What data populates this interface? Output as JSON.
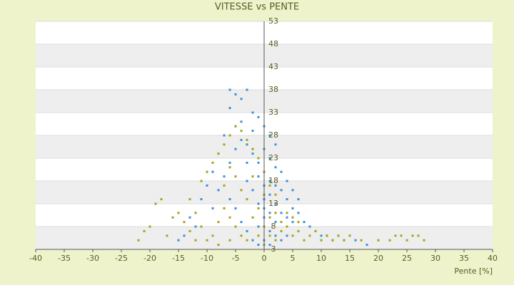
{
  "chart_data": {
    "type": "scatter",
    "title": "VITESSE vs PENTE",
    "x_label": "Pente [%]",
    "xlim": [
      -40,
      40
    ],
    "xticks": [
      -40,
      -35,
      -30,
      -25,
      -20,
      -15,
      -10,
      -5,
      0,
      5,
      10,
      15,
      20,
      25,
      30,
      35,
      40
    ],
    "ylim": [
      3,
      53
    ],
    "yticks": [
      3,
      8,
      13,
      18,
      23,
      28,
      33,
      38,
      43,
      48,
      53
    ],
    "banded_grid": true,
    "series": [
      {
        "color": "#3b8fd8",
        "x": [
          -6,
          -5,
          -4,
          -3,
          -2,
          -1,
          0,
          -4,
          -6,
          -5,
          -7,
          -8,
          -9,
          -10,
          -11,
          -13,
          -14,
          -15,
          -12,
          -9,
          -8,
          -7,
          -6,
          -5,
          -4,
          -3,
          -2,
          -1,
          0,
          1,
          2,
          3,
          4,
          5,
          6,
          7,
          8,
          9,
          10,
          11,
          12,
          13,
          14,
          16,
          18,
          0,
          1,
          2,
          1,
          0,
          -1,
          -2,
          -3,
          -1,
          0,
          2,
          3,
          4,
          5,
          0,
          -1,
          1,
          2,
          0,
          -2,
          -3,
          -4,
          -5,
          -6,
          3,
          4,
          5,
          6,
          1,
          2,
          -2,
          -3,
          0,
          1,
          2,
          -1,
          1,
          3,
          4
        ],
        "values": [
          38,
          37,
          36,
          38,
          33,
          32,
          30,
          31,
          34,
          30,
          28,
          24,
          20,
          17,
          14,
          10,
          6,
          5,
          8,
          12,
          16,
          19,
          22,
          25,
          27,
          26,
          24,
          22,
          20,
          18,
          17,
          16,
          14,
          12,
          11,
          9,
          8,
          7,
          6,
          6,
          5,
          6,
          5,
          5,
          4,
          25,
          23,
          21,
          15,
          14,
          13,
          16,
          18,
          19,
          17,
          13,
          11,
          10,
          9,
          10,
          8,
          7,
          6,
          5,
          5,
          7,
          9,
          12,
          14,
          20,
          18,
          16,
          14,
          28,
          26,
          29,
          22,
          12,
          11,
          9,
          4,
          4,
          5,
          6
        ]
      },
      {
        "color": "#a3a512",
        "x": [
          -22,
          -21,
          -20,
          -19,
          -18,
          -17,
          -16,
          -15,
          -14,
          -13,
          -12,
          -11,
          -10,
          -9,
          -8,
          -7,
          -6,
          -5,
          -4,
          -3,
          -2,
          -1,
          0,
          1,
          2,
          -6,
          -5,
          -4,
          -3,
          -7,
          -8,
          -9,
          -10,
          -11,
          -12,
          -13,
          0,
          1,
          2,
          3,
          4,
          5,
          6,
          7,
          8,
          9,
          10,
          11,
          12,
          13,
          14,
          15,
          17,
          20,
          22,
          23,
          24,
          25,
          26,
          27,
          28,
          -2,
          -1,
          0,
          -3,
          -4,
          -5,
          -6,
          -7,
          -2,
          1,
          2,
          3,
          4,
          5,
          6,
          -1,
          0,
          -6,
          -8
        ],
        "values": [
          5,
          7,
          8,
          13,
          14,
          6,
          10,
          11,
          9,
          14,
          5,
          18,
          20,
          22,
          24,
          26,
          28,
          30,
          29,
          27,
          25,
          23,
          20,
          17,
          15,
          10,
          8,
          6,
          5,
          12,
          9,
          6,
          5,
          8,
          11,
          7,
          8,
          6,
          5,
          7,
          8,
          6,
          7,
          5,
          6,
          7,
          5,
          6,
          5,
          6,
          5,
          6,
          5,
          5,
          5,
          6,
          6,
          5,
          6,
          6,
          5,
          10,
          12,
          15,
          14,
          16,
          19,
          21,
          17,
          19,
          10,
          11,
          9,
          11,
          10,
          9,
          6,
          4,
          5,
          4
        ]
      }
    ]
  }
}
